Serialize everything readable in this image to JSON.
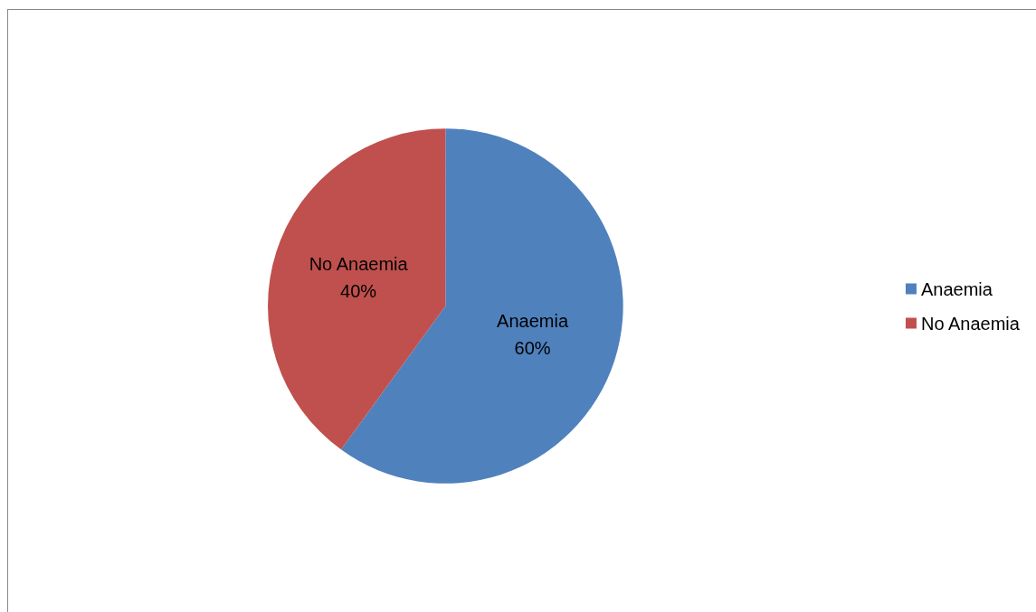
{
  "chart_data": {
    "type": "pie",
    "categories": [
      "Anaemia",
      "No Anaemia"
    ],
    "values": [
      60,
      40
    ],
    "colors": [
      "#4f81bd",
      "#c0504d"
    ],
    "value_labels": [
      "60%",
      "40%"
    ],
    "legend": "right"
  }
}
